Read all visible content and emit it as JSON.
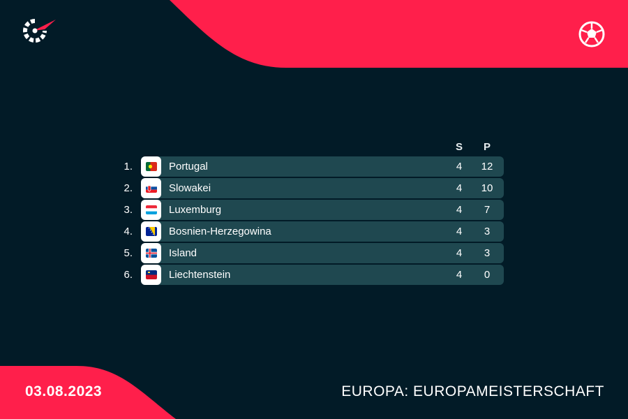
{
  "columns": {
    "s": "S",
    "p": "P"
  },
  "standings": [
    {
      "rank": "1.",
      "team": "Portugal",
      "s": "4",
      "p": "12",
      "flag": "portugal-flag-icon"
    },
    {
      "rank": "2.",
      "team": "Slowakei",
      "s": "4",
      "p": "10",
      "flag": "slovakia-flag-icon"
    },
    {
      "rank": "3.",
      "team": "Luxemburg",
      "s": "4",
      "p": "7",
      "flag": "luxembourg-flag-icon"
    },
    {
      "rank": "4.",
      "team": "Bosnien-Herzegowina",
      "s": "4",
      "p": "3",
      "flag": "bosnia-flag-icon"
    },
    {
      "rank": "5.",
      "team": "Island",
      "s": "4",
      "p": "3",
      "flag": "iceland-flag-icon"
    },
    {
      "rank": "6.",
      "team": "Liechtenstein",
      "s": "4",
      "p": "0",
      "flag": "liechtenstein-flag-icon"
    }
  ],
  "footer": {
    "date": "03.08.2023",
    "competition": "EUROPA: EUROPAMEISTERSCHAFT"
  },
  "colors": {
    "background": "#021b27",
    "accent": "#ff1f4b",
    "row_bar": "#1f4850"
  },
  "icons": {
    "logo": "flashscore-logo-icon",
    "sport": "football-icon"
  }
}
